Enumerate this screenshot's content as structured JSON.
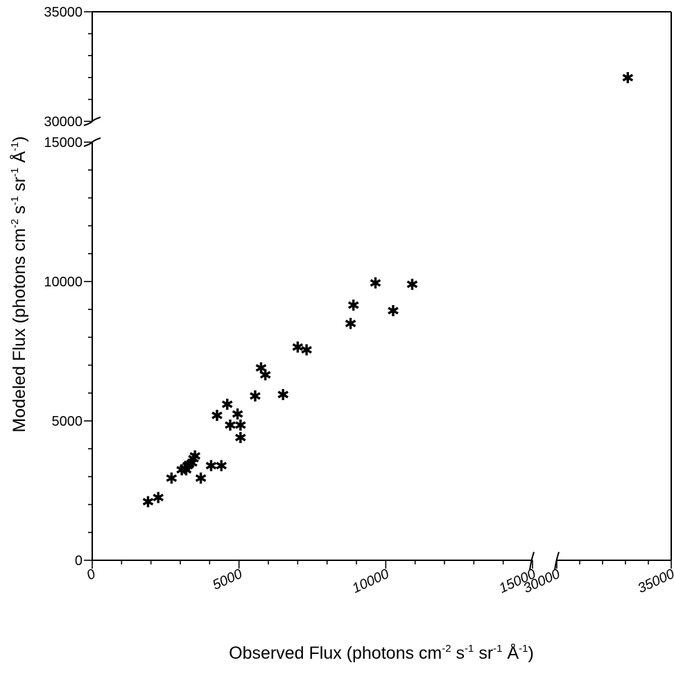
{
  "chart_data": {
    "type": "scatter",
    "xlabel": {
      "main": "Observed Flux (photons cm",
      "sup1": "-2",
      "mid1": " s",
      "sup2": "-1",
      "mid2": " sr",
      "sup3": "-1",
      "mid3": " Å",
      "sup4": "-1",
      "end": ")"
    },
    "ylabel": {
      "main": "Modeled Flux (photons cm",
      "sup1": "-2",
      "mid1": " s",
      "sup2": "-1",
      "mid2": " sr",
      "sup3": "-1",
      "mid3": " Å",
      "sup4": "-1",
      "end": ")"
    },
    "x_segments": [
      [
        0,
        15000
      ],
      [
        30000,
        35000
      ]
    ],
    "y_segments": [
      [
        0,
        15000
      ],
      [
        30000,
        35000
      ]
    ],
    "x_tick_labels": [
      {
        "value": 0,
        "label": "0"
      },
      {
        "value": 5000,
        "label": "5000"
      },
      {
        "value": 10000,
        "label": "10000"
      },
      {
        "value": 15000,
        "label": "15000"
      },
      {
        "value": 30000,
        "label": "30000"
      },
      {
        "value": 35000,
        "label": "35000"
      }
    ],
    "y_tick_labels": [
      {
        "value": 0,
        "label": "0"
      },
      {
        "value": 5000,
        "label": "5000"
      },
      {
        "value": 10000,
        "label": "10000"
      },
      {
        "value": 15000,
        "label": "15000"
      },
      {
        "value": 30000,
        "label": "30000"
      },
      {
        "value": 35000,
        "label": "35000"
      }
    ],
    "marker": "asterisk",
    "points": [
      {
        "x": 1900,
        "y": 2100
      },
      {
        "x": 2250,
        "y": 2250
      },
      {
        "x": 2700,
        "y": 2950
      },
      {
        "x": 3050,
        "y": 3250
      },
      {
        "x": 3150,
        "y": 3300
      },
      {
        "x": 3200,
        "y": 3250
      },
      {
        "x": 3250,
        "y": 3400
      },
      {
        "x": 3300,
        "y": 3450
      },
      {
        "x": 3400,
        "y": 3500
      },
      {
        "x": 3450,
        "y": 3650
      },
      {
        "x": 3500,
        "y": 3750
      },
      {
        "x": 3700,
        "y": 2950
      },
      {
        "x": 4050,
        "y": 3400
      },
      {
        "x": 4400,
        "y": 3400
      },
      {
        "x": 4250,
        "y": 5200
      },
      {
        "x": 4600,
        "y": 5600
      },
      {
        "x": 4700,
        "y": 4850
      },
      {
        "x": 4950,
        "y": 5250
      },
      {
        "x": 5050,
        "y": 4850
      },
      {
        "x": 5050,
        "y": 4400
      },
      {
        "x": 5550,
        "y": 5900
      },
      {
        "x": 5750,
        "y": 6900
      },
      {
        "x": 5900,
        "y": 6650
      },
      {
        "x": 6500,
        "y": 5950
      },
      {
        "x": 7000,
        "y": 7650
      },
      {
        "x": 7300,
        "y": 7550
      },
      {
        "x": 8800,
        "y": 8500
      },
      {
        "x": 8900,
        "y": 9150
      },
      {
        "x": 9650,
        "y": 9950
      },
      {
        "x": 10250,
        "y": 8950
      },
      {
        "x": 10900,
        "y": 9900
      },
      {
        "x": 33100,
        "y": 32000
      }
    ]
  }
}
